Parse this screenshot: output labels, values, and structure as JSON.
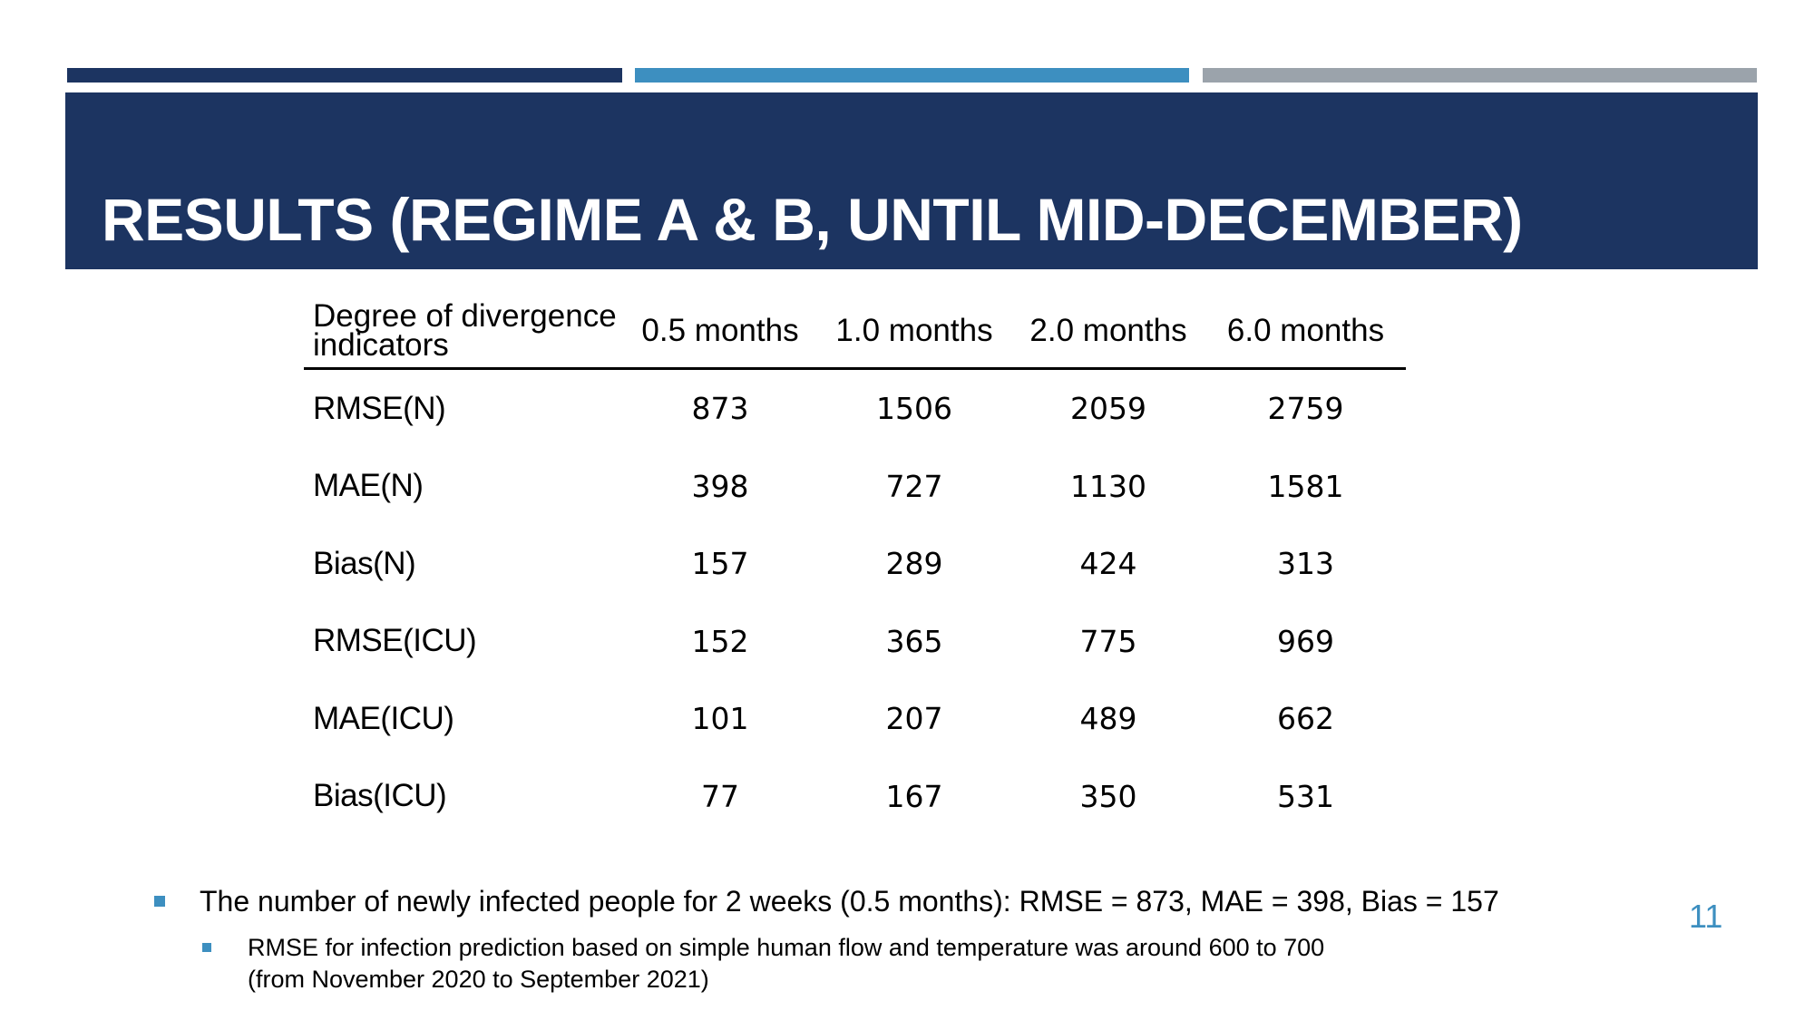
{
  "colors": {
    "navy": "#1c3461",
    "blue": "#3d8fc0",
    "gray": "#9ba3ab",
    "bullet": "#3d8fc0",
    "page_number": "#3d8fc0"
  },
  "slide": {
    "title": "RESULTS (REGIME A & B, UNTIL MID-DECEMBER)",
    "page_number": "11"
  },
  "table": {
    "headers": [
      "Degree of divergence indicators",
      "0.5 months",
      "1.0 months",
      "2.0 months",
      "6.0 months"
    ],
    "rows": [
      {
        "label": "RMSE(N)",
        "values": [
          "873",
          "1506",
          "2059",
          "2759"
        ]
      },
      {
        "label": "MAE(N)",
        "values": [
          "398",
          "727",
          "1130",
          "1581"
        ]
      },
      {
        "label": "Bias(N)",
        "values": [
          "157",
          "289",
          "424",
          "313"
        ]
      },
      {
        "label": "RMSE(ICU)",
        "values": [
          "152",
          "365",
          "775",
          "969"
        ]
      },
      {
        "label": "MAE(ICU)",
        "values": [
          "101",
          "207",
          "489",
          "662"
        ]
      },
      {
        "label": "Bias(ICU)",
        "values": [
          "77",
          "167",
          "350",
          "531"
        ]
      }
    ]
  },
  "bullets": {
    "main": "The number of newly infected people for 2 weeks (0.5 months): RMSE = 873, MAE = 398, Bias = 157",
    "sub_line1": "RMSE for infection prediction based on simple human flow and temperature was around 600 to 700",
    "sub_line2": "(from November 2020 to September 2021)"
  }
}
